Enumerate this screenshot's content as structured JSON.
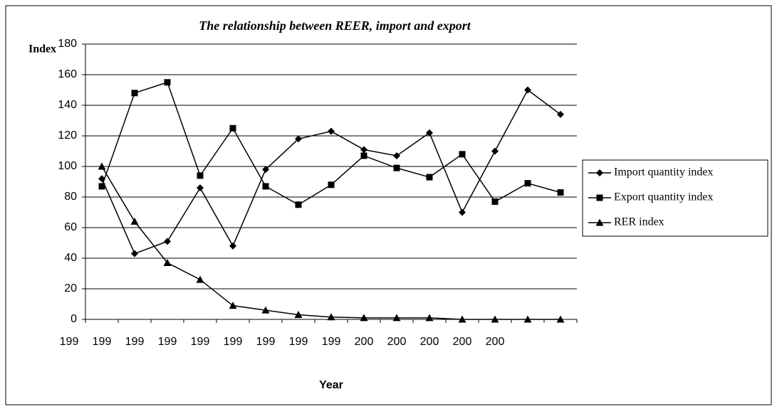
{
  "chart_data": {
    "type": "line",
    "title": "The relationship between REER, import and export",
    "y_label": "Index",
    "x_label": "Year",
    "categories": [
      "199",
      "199",
      "199",
      "199",
      "199",
      "199",
      "199",
      "199",
      "199",
      "200",
      "200",
      "200",
      "200",
      "200",
      null
    ],
    "series": [
      {
        "name": "Import quantity index",
        "color": "#000000",
        "marker": "diamond",
        "values": [
          92,
          43,
          51,
          86,
          48,
          98,
          118,
          123,
          111,
          107,
          122,
          70,
          110,
          150,
          134
        ]
      },
      {
        "name": "Export quantity index",
        "color": "#000000",
        "marker": "square",
        "values": [
          87,
          148,
          155,
          94,
          125,
          87,
          75,
          88,
          107,
          99,
          93,
          108,
          77,
          89,
          83
        ]
      },
      {
        "name": "RER index",
        "color": "#000000",
        "marker": "triangle",
        "values": [
          100,
          64,
          37,
          26,
          9,
          6,
          3,
          1.5,
          1,
          1,
          1,
          0,
          0,
          0,
          0
        ]
      }
    ],
    "ylim": [
      0,
      180
    ],
    "yticks": [
      0,
      20,
      40,
      60,
      80,
      100,
      120,
      140,
      160,
      180
    ],
    "grid": true,
    "legend": "right"
  }
}
